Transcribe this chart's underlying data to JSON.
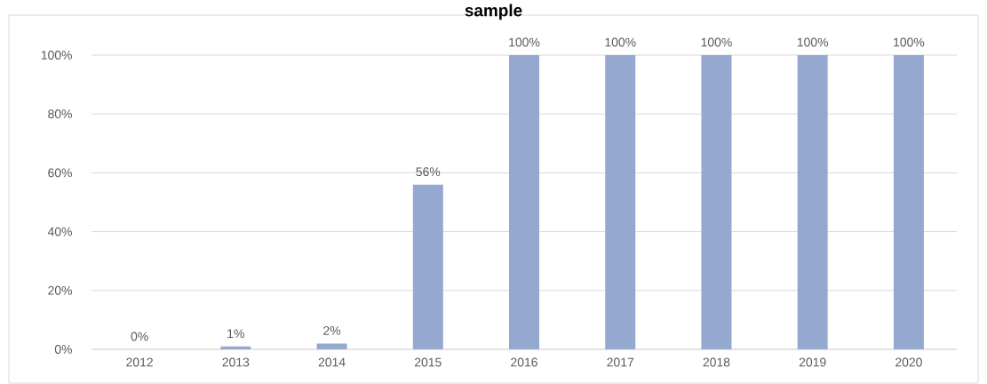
{
  "chart_data": {
    "type": "bar",
    "title": "sample",
    "categories": [
      "2012",
      "2013",
      "2014",
      "2015",
      "2016",
      "2017",
      "2018",
      "2019",
      "2020"
    ],
    "values": [
      0,
      1,
      2,
      56,
      100,
      100,
      100,
      100,
      100
    ],
    "value_labels": [
      "0%",
      "1%",
      "2%",
      "56%",
      "100%",
      "100%",
      "100%",
      "100%",
      "100%"
    ],
    "color": "#95a9d0",
    "ylim": [
      0,
      100
    ],
    "yticks": [
      {
        "value": 0,
        "label": "0%"
      },
      {
        "value": 20,
        "label": "20%"
      },
      {
        "value": 40,
        "label": "40%"
      },
      {
        "value": 60,
        "label": "60%"
      },
      {
        "value": 80,
        "label": "80%"
      },
      {
        "value": 100,
        "label": "100%"
      }
    ],
    "grid": "y"
  }
}
